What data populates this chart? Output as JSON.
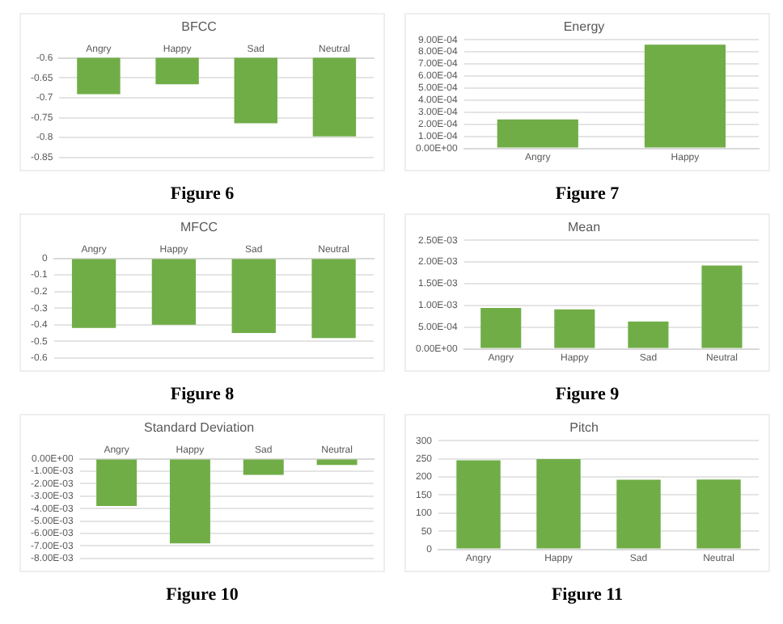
{
  "chart_data": [
    {
      "type": "bar",
      "title": "BFCC",
      "categories": [
        "Angry",
        "Happy",
        "Sad",
        "Neutral"
      ],
      "values": [
        -0.691,
        -0.666,
        -0.764,
        -0.797
      ],
      "color": "#70ad47",
      "ylim": [
        -0.85,
        -0.6
      ],
      "yticks": [
        -0.85,
        -0.8,
        -0.75,
        -0.7,
        -0.65,
        -0.6
      ],
      "grid": "y",
      "legend": false,
      "annotations": [
        "Figure 6"
      ]
    },
    {
      "type": "bar",
      "title": "Energy",
      "categories": [
        "Angry",
        "Happy"
      ],
      "values": [
        0.00024,
        0.00086
      ],
      "color": "#70ad47",
      "ylim": [
        0,
        0.0009
      ],
      "yticks": [
        {
          "value": 0,
          "label": "0.00E+00"
        },
        {
          "value": 0.0001,
          "label": "1.00E-04"
        },
        {
          "value": 0.0002,
          "label": "2.00E-04"
        },
        {
          "value": 0.0003,
          "label": "3.00E-04"
        },
        {
          "value": 0.0004,
          "label": "4.00E-04"
        },
        {
          "value": 0.0005,
          "label": "5.00E-04"
        },
        {
          "value": 0.0006,
          "label": "6.00E-04"
        },
        {
          "value": 0.0007,
          "label": "7.00E-04"
        },
        {
          "value": 0.0008,
          "label": "8.00E-04"
        },
        {
          "value": 0.0009,
          "label": "9.00E-04"
        }
      ],
      "grid": "y",
      "legend": false,
      "annotations": [
        "Figure 7"
      ]
    },
    {
      "type": "bar",
      "title": "MFCC",
      "categories": [
        "Angry",
        "Happy",
        "Sad",
        "Neutral"
      ],
      "values": [
        -0.42,
        -0.4,
        -0.45,
        -0.48
      ],
      "color": "#70ad47",
      "ylim": [
        -0.6,
        0
      ],
      "yticks": [
        -0.6,
        -0.5,
        -0.4,
        -0.3,
        -0.2,
        -0.1,
        0
      ],
      "grid": "y",
      "legend": false,
      "annotations": [
        "Figure 8"
      ]
    },
    {
      "type": "bar",
      "title": "Mean",
      "categories": [
        "Angry",
        "Happy",
        "Sad",
        "Neutral"
      ],
      "values": [
        0.00094,
        0.00091,
        0.00063,
        0.00192
      ],
      "color": "#70ad47",
      "ylim": [
        0,
        0.0025
      ],
      "yticks": [
        {
          "value": 0,
          "label": "0.00E+00"
        },
        {
          "value": 0.0005,
          "label": "5.00E-04"
        },
        {
          "value": 0.001,
          "label": "1.00E-03"
        },
        {
          "value": 0.0015,
          "label": "1.50E-03"
        },
        {
          "value": 0.002,
          "label": "2.00E-03"
        },
        {
          "value": 0.0025,
          "label": "2.50E-03"
        }
      ],
      "grid": "y",
      "legend": false,
      "annotations": [
        "Figure 9"
      ]
    },
    {
      "type": "bar",
      "title": "Standard Deviation",
      "categories": [
        "Angry",
        "Happy",
        "Sad",
        "Neutral"
      ],
      "values": [
        -0.0038,
        -0.0068,
        -0.0013,
        -0.0005
      ],
      "color": "#70ad47",
      "ylim": [
        -0.008,
        0
      ],
      "yticks": [
        {
          "value": -0.008,
          "label": "-8.00E-03"
        },
        {
          "value": -0.007,
          "label": "-7.00E-03"
        },
        {
          "value": -0.006,
          "label": "-6.00E-03"
        },
        {
          "value": -0.005,
          "label": "-5.00E-03"
        },
        {
          "value": -0.004,
          "label": "-4.00E-03"
        },
        {
          "value": -0.003,
          "label": "-3.00E-03"
        },
        {
          "value": -0.002,
          "label": "-2.00E-03"
        },
        {
          "value": -0.001,
          "label": "-1.00E-03"
        },
        {
          "value": 0,
          "label": "0.00E+00"
        }
      ],
      "grid": "y",
      "legend": false,
      "annotations": [
        "Figure 10"
      ]
    },
    {
      "type": "bar",
      "title": "Pitch",
      "categories": [
        "Angry",
        "Happy",
        "Sad",
        "Neutral"
      ],
      "values": [
        246,
        249,
        192,
        193
      ],
      "color": "#70ad47",
      "ylim": [
        0,
        300
      ],
      "yticks": [
        0,
        50,
        100,
        150,
        200,
        250,
        300
      ],
      "grid": "y",
      "legend": false,
      "annotations": [
        "Figure 11"
      ]
    }
  ]
}
